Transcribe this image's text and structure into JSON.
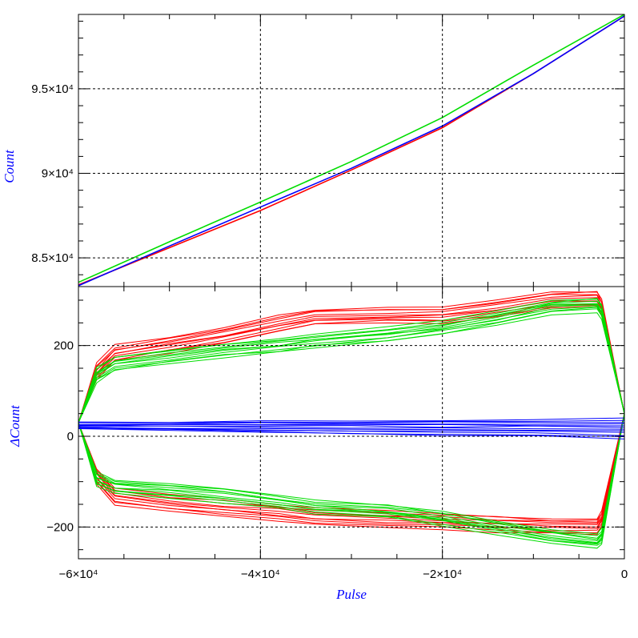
{
  "chart_data": [
    {
      "type": "line",
      "panel": "top",
      "ylabel": "Count",
      "xlim": [
        -60000,
        0
      ],
      "ylim": [
        83300,
        99400
      ],
      "grid": true,
      "yticks": [
        {
          "value": 85000,
          "label": "8.5×10⁴"
        },
        {
          "value": 90000,
          "label": "9×10⁴"
        },
        {
          "value": 95000,
          "label": "9.5×10⁴"
        }
      ],
      "series": [
        {
          "color": "#ff0000",
          "x": [
            -60000,
            -50000,
            -40000,
            -30000,
            -20000,
            -10000,
            0
          ],
          "y": [
            83400,
            85600,
            87800,
            90200,
            92700,
            95900,
            99300
          ]
        },
        {
          "color": "#0000ff",
          "x": [
            -60000,
            -50000,
            -40000,
            -30000,
            -20000,
            -10000,
            0
          ],
          "y": [
            83350,
            85700,
            88000,
            90300,
            92800,
            95900,
            99300
          ]
        },
        {
          "color": "#00dd00",
          "x": [
            -60000,
            -50000,
            -40000,
            -30000,
            -20000,
            -10000,
            0
          ],
          "y": [
            83550,
            85950,
            88300,
            90700,
            93300,
            96400,
            99400
          ]
        }
      ]
    },
    {
      "type": "line",
      "panel": "bottom",
      "xlabel": "Pulse",
      "ylabel": "ΔCount",
      "xlim": [
        -60000,
        0
      ],
      "ylim": [
        -270,
        330
      ],
      "grid": true,
      "yticks": [
        {
          "value": -200,
          "label": "−200"
        },
        {
          "value": 0,
          "label": "0"
        },
        {
          "value": 200,
          "label": "200"
        }
      ],
      "xticks": [
        {
          "value": -60000,
          "label": "−6×10⁴"
        },
        {
          "value": -40000,
          "label": "−4×10⁴"
        },
        {
          "value": -20000,
          "label": "−2×10⁴"
        },
        {
          "value": 0,
          "label": "0"
        }
      ],
      "groups": [
        {
          "color": "#ff0000",
          "x": [
            -60000,
            -58000,
            -56000,
            -50000,
            -44000,
            -38000,
            -34000,
            -26000,
            -20000,
            -14000,
            -8000,
            -3000,
            -2500,
            0
          ],
          "upper": [
            30,
            160,
            200,
            220,
            240,
            265,
            280,
            285,
            285,
            300,
            320,
            320,
            300,
            50
          ],
          "lower": [
            30,
            -105,
            -150,
            -165,
            -175,
            -185,
            -195,
            -200,
            -205,
            -210,
            -215,
            -215,
            -200,
            50
          ],
          "spread": 35,
          "count": 10
        },
        {
          "color": "#00dd00",
          "x": [
            -60000,
            -58000,
            -56000,
            -50000,
            -44000,
            -38000,
            -34000,
            -26000,
            -20000,
            -14000,
            -8000,
            -3000,
            -2500,
            0
          ],
          "upper": [
            30,
            150,
            175,
            190,
            205,
            215,
            225,
            240,
            255,
            275,
            300,
            305,
            290,
            50
          ],
          "lower": [
            30,
            -110,
            -125,
            -135,
            -145,
            -160,
            -170,
            -180,
            -195,
            -215,
            -235,
            -245,
            -235,
            50
          ],
          "spread": 30,
          "count": 10
        },
        {
          "color": "#0000ff",
          "x": [
            -60000,
            -50000,
            -40000,
            -30000,
            -20000,
            -10000,
            0
          ],
          "upper": [
            30,
            32,
            33,
            35,
            36,
            38,
            40
          ],
          "lower": [
            15,
            12,
            8,
            5,
            3,
            0,
            -5
          ],
          "spread": 0,
          "count": 12
        }
      ]
    }
  ]
}
